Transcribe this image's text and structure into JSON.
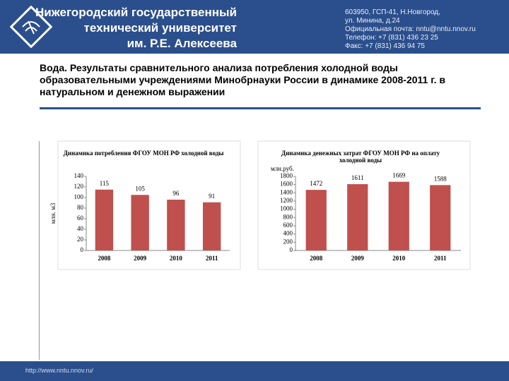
{
  "header": {
    "university": [
      "Нижегородский государственный",
      "технический университет",
      "им. Р.Е. Алексеева"
    ],
    "contacts": [
      "603950, ГСП-41, Н.Новгород,",
      "ул. Минина, д.24",
      "Официальная почта: nntu@nntu.nnov.ru",
      "Телефон: +7 (831) 436 23 25",
      "Факс: +7 (831) 436 94 75"
    ]
  },
  "title": "Вода. Результаты сравнительного анализа потребления холодной воды образовательными учреждениями Минобрнауки России в динамике 2008-2011 г. в натуральном и денежном выражении",
  "footer": "http://www.nntu.nnov.ru/",
  "chart_data": [
    {
      "type": "bar",
      "title": "Динамика потребления ФГОУ МОН РФ холодной воды",
      "y_label": "млн. м3",
      "categories": [
        "2008",
        "2009",
        "2010",
        "2011"
      ],
      "values": [
        115,
        105,
        96,
        91
      ],
      "color": "#c0504d",
      "ylim": [
        0,
        140
      ],
      "yticks": [
        0,
        20,
        40,
        60,
        80,
        100,
        120,
        140
      ]
    },
    {
      "type": "bar",
      "title": "Динамика денежных затрат ФГОУ МОН РФ на оплату холодной воды",
      "y_label": "млн.руб.",
      "categories": [
        "2008",
        "2009",
        "2010",
        "2011"
      ],
      "values": [
        1472,
        1611,
        1669,
        1588
      ],
      "color": "#c0504d",
      "ylim": [
        0,
        1800
      ],
      "yticks": [
        0,
        200,
        400,
        600,
        800,
        1000,
        1200,
        1400,
        1600,
        1800
      ]
    }
  ]
}
